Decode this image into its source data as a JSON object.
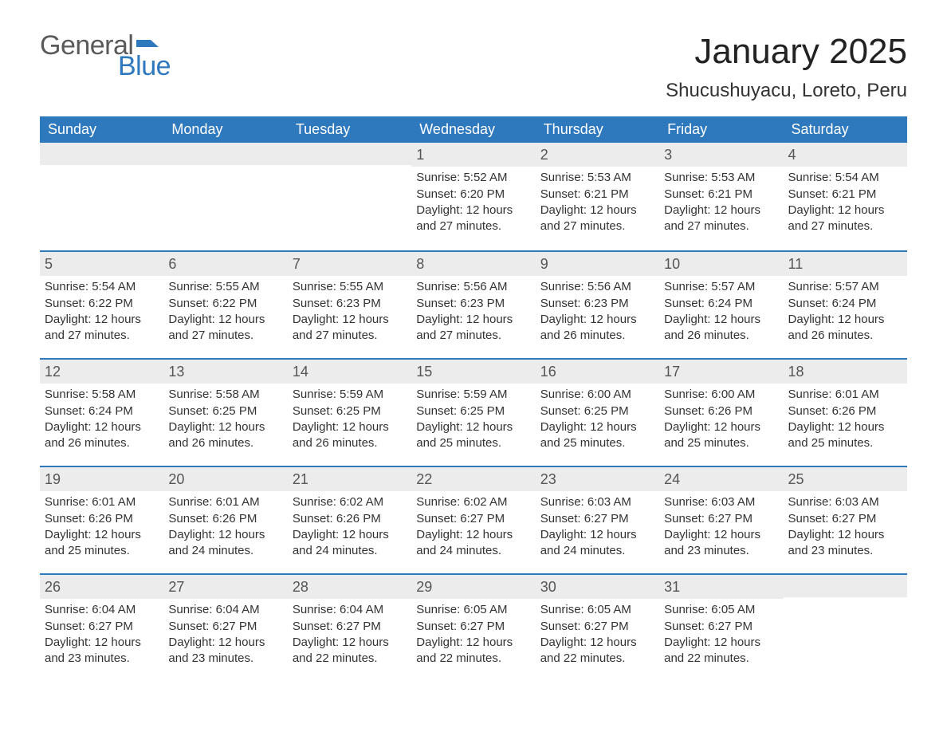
{
  "logo": {
    "general": "General",
    "blue": "Blue",
    "flag_color": "#2e78bd"
  },
  "title": "January 2025",
  "location": "Shucushuyacu, Loreto, Peru",
  "colors": {
    "header_bg": "#2e78bd",
    "header_text": "#ffffff",
    "daynum_bg": "#ececec",
    "body_text": "#333333",
    "page_bg": "#ffffff"
  },
  "typography": {
    "title_fontsize": 44,
    "location_fontsize": 24,
    "dayhead_fontsize": 18,
    "daynum_fontsize": 18,
    "body_fontsize": 15,
    "font_family": "Arial"
  },
  "day_headers": [
    "Sunday",
    "Monday",
    "Tuesday",
    "Wednesday",
    "Thursday",
    "Friday",
    "Saturday"
  ],
  "labels": {
    "sunrise": "Sunrise:",
    "sunset": "Sunset:",
    "daylight": "Daylight:"
  },
  "weeks": [
    [
      {
        "day": "",
        "sunrise": "",
        "sunset": "",
        "daylight": ""
      },
      {
        "day": "",
        "sunrise": "",
        "sunset": "",
        "daylight": ""
      },
      {
        "day": "",
        "sunrise": "",
        "sunset": "",
        "daylight": ""
      },
      {
        "day": "1",
        "sunrise": "5:52 AM",
        "sunset": "6:20 PM",
        "daylight": "12 hours and 27 minutes."
      },
      {
        "day": "2",
        "sunrise": "5:53 AM",
        "sunset": "6:21 PM",
        "daylight": "12 hours and 27 minutes."
      },
      {
        "day": "3",
        "sunrise": "5:53 AM",
        "sunset": "6:21 PM",
        "daylight": "12 hours and 27 minutes."
      },
      {
        "day": "4",
        "sunrise": "5:54 AM",
        "sunset": "6:21 PM",
        "daylight": "12 hours and 27 minutes."
      }
    ],
    [
      {
        "day": "5",
        "sunrise": "5:54 AM",
        "sunset": "6:22 PM",
        "daylight": "12 hours and 27 minutes."
      },
      {
        "day": "6",
        "sunrise": "5:55 AM",
        "sunset": "6:22 PM",
        "daylight": "12 hours and 27 minutes."
      },
      {
        "day": "7",
        "sunrise": "5:55 AM",
        "sunset": "6:23 PM",
        "daylight": "12 hours and 27 minutes."
      },
      {
        "day": "8",
        "sunrise": "5:56 AM",
        "sunset": "6:23 PM",
        "daylight": "12 hours and 27 minutes."
      },
      {
        "day": "9",
        "sunrise": "5:56 AM",
        "sunset": "6:23 PM",
        "daylight": "12 hours and 26 minutes."
      },
      {
        "day": "10",
        "sunrise": "5:57 AM",
        "sunset": "6:24 PM",
        "daylight": "12 hours and 26 minutes."
      },
      {
        "day": "11",
        "sunrise": "5:57 AM",
        "sunset": "6:24 PM",
        "daylight": "12 hours and 26 minutes."
      }
    ],
    [
      {
        "day": "12",
        "sunrise": "5:58 AM",
        "sunset": "6:24 PM",
        "daylight": "12 hours and 26 minutes."
      },
      {
        "day": "13",
        "sunrise": "5:58 AM",
        "sunset": "6:25 PM",
        "daylight": "12 hours and 26 minutes."
      },
      {
        "day": "14",
        "sunrise": "5:59 AM",
        "sunset": "6:25 PM",
        "daylight": "12 hours and 26 minutes."
      },
      {
        "day": "15",
        "sunrise": "5:59 AM",
        "sunset": "6:25 PM",
        "daylight": "12 hours and 25 minutes."
      },
      {
        "day": "16",
        "sunrise": "6:00 AM",
        "sunset": "6:25 PM",
        "daylight": "12 hours and 25 minutes."
      },
      {
        "day": "17",
        "sunrise": "6:00 AM",
        "sunset": "6:26 PM",
        "daylight": "12 hours and 25 minutes."
      },
      {
        "day": "18",
        "sunrise": "6:01 AM",
        "sunset": "6:26 PM",
        "daylight": "12 hours and 25 minutes."
      }
    ],
    [
      {
        "day": "19",
        "sunrise": "6:01 AM",
        "sunset": "6:26 PM",
        "daylight": "12 hours and 25 minutes."
      },
      {
        "day": "20",
        "sunrise": "6:01 AM",
        "sunset": "6:26 PM",
        "daylight": "12 hours and 24 minutes."
      },
      {
        "day": "21",
        "sunrise": "6:02 AM",
        "sunset": "6:26 PM",
        "daylight": "12 hours and 24 minutes."
      },
      {
        "day": "22",
        "sunrise": "6:02 AM",
        "sunset": "6:27 PM",
        "daylight": "12 hours and 24 minutes."
      },
      {
        "day": "23",
        "sunrise": "6:03 AM",
        "sunset": "6:27 PM",
        "daylight": "12 hours and 24 minutes."
      },
      {
        "day": "24",
        "sunrise": "6:03 AM",
        "sunset": "6:27 PM",
        "daylight": "12 hours and 23 minutes."
      },
      {
        "day": "25",
        "sunrise": "6:03 AM",
        "sunset": "6:27 PM",
        "daylight": "12 hours and 23 minutes."
      }
    ],
    [
      {
        "day": "26",
        "sunrise": "6:04 AM",
        "sunset": "6:27 PM",
        "daylight": "12 hours and 23 minutes."
      },
      {
        "day": "27",
        "sunrise": "6:04 AM",
        "sunset": "6:27 PM",
        "daylight": "12 hours and 23 minutes."
      },
      {
        "day": "28",
        "sunrise": "6:04 AM",
        "sunset": "6:27 PM",
        "daylight": "12 hours and 22 minutes."
      },
      {
        "day": "29",
        "sunrise": "6:05 AM",
        "sunset": "6:27 PM",
        "daylight": "12 hours and 22 minutes."
      },
      {
        "day": "30",
        "sunrise": "6:05 AM",
        "sunset": "6:27 PM",
        "daylight": "12 hours and 22 minutes."
      },
      {
        "day": "31",
        "sunrise": "6:05 AM",
        "sunset": "6:27 PM",
        "daylight": "12 hours and 22 minutes."
      },
      {
        "day": "",
        "sunrise": "",
        "sunset": "",
        "daylight": ""
      }
    ]
  ]
}
